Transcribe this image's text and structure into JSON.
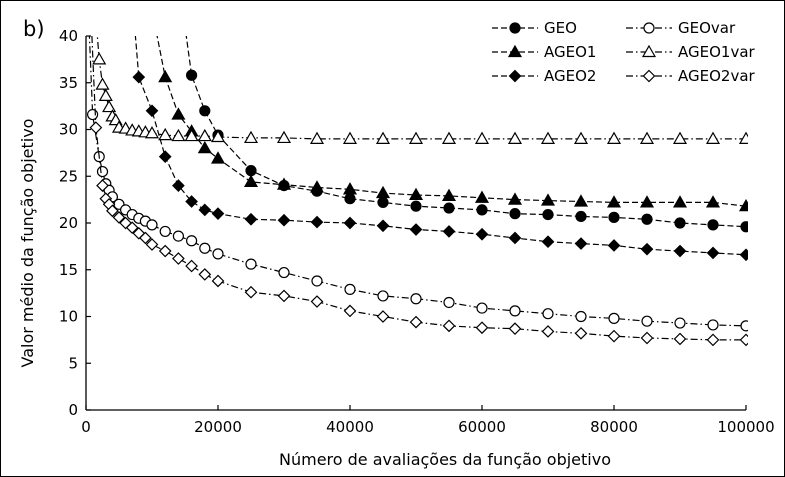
{
  "chart_data": {
    "type": "line",
    "panel_label": "b)",
    "xlabel": "Número de avaliações da função objetivo",
    "ylabel": "Valor médio da função objetivo",
    "xlim": [
      0,
      100000
    ],
    "ylim": [
      0,
      40
    ],
    "xticks": [
      0,
      20000,
      40000,
      60000,
      80000,
      100000
    ],
    "yticks": [
      0,
      5,
      10,
      15,
      20,
      25,
      30,
      35,
      40
    ],
    "grid": false,
    "legend_position": "top-right",
    "series": [
      {
        "name": "GEO",
        "marker": "circle-filled",
        "dash": "dashed",
        "x": [
          16000,
          18000,
          20000,
          25000,
          30000,
          35000,
          40000,
          45000,
          50000,
          55000,
          60000,
          65000,
          70000,
          75000,
          80000,
          85000,
          90000,
          95000,
          100000
        ],
        "y": [
          35.8,
          32.0,
          29.4,
          25.6,
          24.0,
          23.4,
          22.6,
          22.2,
          21.8,
          21.6,
          21.4,
          21.0,
          20.9,
          20.7,
          20.6,
          20.4,
          20.0,
          19.8,
          19.6
        ]
      },
      {
        "name": "AGEO1",
        "marker": "triangle-filled",
        "dash": "dashed",
        "x": [
          12000,
          14000,
          16000,
          18000,
          20000,
          25000,
          30000,
          35000,
          40000,
          45000,
          50000,
          55000,
          60000,
          65000,
          70000,
          75000,
          80000,
          85000,
          90000,
          95000,
          100000
        ],
        "y": [
          35.6,
          31.6,
          29.8,
          28.0,
          26.9,
          24.4,
          24.1,
          23.8,
          23.6,
          23.2,
          23.0,
          22.9,
          22.7,
          22.5,
          22.4,
          22.3,
          22.2,
          22.2,
          22.2,
          22.2,
          21.8
        ]
      },
      {
        "name": "AGEO2",
        "marker": "diamond-filled",
        "dash": "dashed",
        "x": [
          8000,
          10000,
          12000,
          14000,
          16000,
          18000,
          20000,
          25000,
          30000,
          35000,
          40000,
          45000,
          50000,
          55000,
          60000,
          65000,
          70000,
          75000,
          80000,
          85000,
          90000,
          95000,
          100000
        ],
        "y": [
          35.6,
          32.0,
          27.1,
          24.0,
          22.3,
          21.4,
          21.0,
          20.4,
          20.3,
          20.1,
          20.0,
          19.7,
          19.3,
          19.1,
          18.8,
          18.4,
          18.0,
          17.8,
          17.6,
          17.2,
          17.0,
          16.8,
          16.6
        ]
      },
      {
        "name": "GEOvar",
        "marker": "circle-open",
        "dash": "dashdot",
        "x": [
          1000,
          2000,
          2500,
          3000,
          3500,
          4000,
          5000,
          6000,
          7000,
          8000,
          9000,
          10000,
          12000,
          14000,
          16000,
          18000,
          20000,
          25000,
          30000,
          35000,
          40000,
          45000,
          50000,
          55000,
          60000,
          65000,
          70000,
          75000,
          80000,
          85000,
          90000,
          95000,
          100000
        ],
        "y": [
          31.6,
          27.1,
          25.5,
          24.2,
          23.5,
          22.8,
          22.0,
          21.4,
          20.9,
          20.5,
          20.2,
          19.8,
          19.1,
          18.6,
          18.1,
          17.3,
          16.7,
          15.6,
          14.7,
          13.8,
          12.9,
          12.2,
          11.9,
          11.5,
          10.9,
          10.6,
          10.3,
          10.0,
          9.8,
          9.5,
          9.3,
          9.1,
          9.0
        ]
      },
      {
        "name": "AGEO1var",
        "marker": "triangle-open",
        "dash": "dashdot",
        "x": [
          2000,
          2500,
          3000,
          3500,
          4000,
          4500,
          5000,
          6000,
          7000,
          8000,
          9000,
          10000,
          12000,
          14000,
          16000,
          18000,
          20000,
          25000,
          30000,
          35000,
          40000,
          45000,
          50000,
          55000,
          60000,
          65000,
          70000,
          75000,
          80000,
          85000,
          90000,
          95000,
          100000
        ],
        "y": [
          37.5,
          34.8,
          33.6,
          32.4,
          31.4,
          31.0,
          30.2,
          30.1,
          29.9,
          29.8,
          29.7,
          29.6,
          29.4,
          29.3,
          29.3,
          29.3,
          29.2,
          29.1,
          29.1,
          29.0,
          29.0,
          29.0,
          29.0,
          29.0,
          29.0,
          29.0,
          29.0,
          29.0,
          29.0,
          29.0,
          29.0,
          29.0,
          29.0
        ]
      },
      {
        "name": "AGEO2var",
        "marker": "diamond-open",
        "dash": "dashdot",
        "x": [
          1500,
          2500,
          3000,
          3500,
          4000,
          5000,
          6000,
          7000,
          8000,
          9000,
          10000,
          12000,
          14000,
          16000,
          18000,
          20000,
          25000,
          30000,
          35000,
          40000,
          45000,
          50000,
          55000,
          60000,
          65000,
          70000,
          75000,
          80000,
          85000,
          90000,
          95000,
          100000
        ],
        "y": [
          30.2,
          24.0,
          22.6,
          22.0,
          21.3,
          20.6,
          20.0,
          19.5,
          18.9,
          18.4,
          17.7,
          17.0,
          16.2,
          15.4,
          14.5,
          13.8,
          12.6,
          12.2,
          11.6,
          10.6,
          10.0,
          9.4,
          9.0,
          8.8,
          8.7,
          8.4,
          8.2,
          7.9,
          7.7,
          7.6,
          7.5,
          7.5
        ]
      }
    ],
    "asymptotes": [
      {
        "series": "GEO",
        "x": [
          14000,
          15000,
          16000
        ],
        "y": [
          48,
          41,
          35.8
        ]
      },
      {
        "series": "AGEO1",
        "x": [
          9000,
          10500,
          12000
        ],
        "y": [
          48,
          41,
          35.6
        ]
      },
      {
        "series": "AGEO2",
        "x": [
          7000,
          7600,
          8000
        ],
        "y": [
          44,
          39,
          35.6
        ]
      },
      {
        "series": "GEOvar",
        "x": [
          400,
          700,
          1000
        ],
        "y": [
          42,
          37,
          31.6
        ]
      },
      {
        "series": "AGEO1var",
        "x": [
          1200,
          1600,
          2000
        ],
        "y": [
          44,
          41,
          37.5
        ]
      },
      {
        "series": "AGEO2var",
        "x": [
          900,
          1200,
          1500
        ],
        "y": [
          40,
          35,
          30.2
        ]
      }
    ]
  }
}
